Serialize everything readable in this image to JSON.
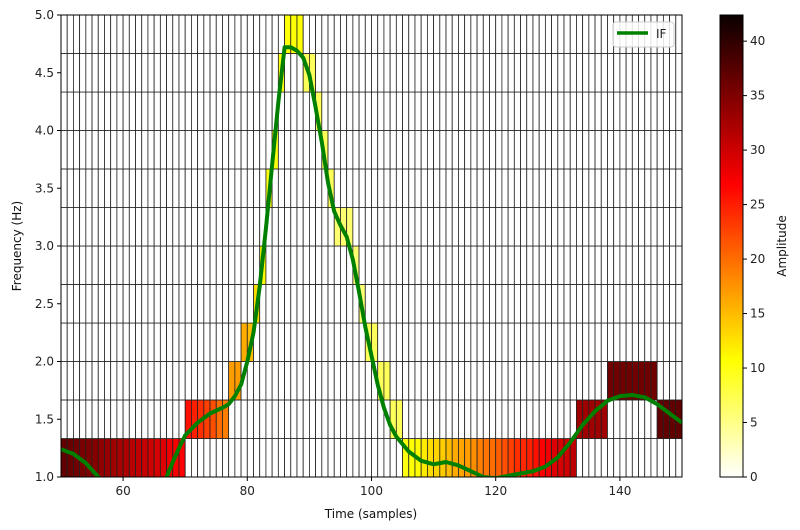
{
  "chart_data": {
    "type": "heatmap",
    "title": "",
    "xlabel": "Time (samples)",
    "ylabel": "Frequency (Hz)",
    "colorbar_label": "Amplitude",
    "colormap": "hot_r",
    "xlim": [
      50,
      150
    ],
    "ylim": [
      1.0,
      5.0
    ],
    "clim": [
      0,
      42.4
    ],
    "x_ticks": [
      "60",
      "80",
      "100",
      "120",
      "140"
    ],
    "y_ticks": [
      "1.0",
      "1.5",
      "2.0",
      "2.5",
      "3.0",
      "3.5",
      "4.0",
      "4.5",
      "5.0"
    ],
    "colorbar_ticks": [
      "0",
      "5",
      "10",
      "15",
      "20",
      "25",
      "30",
      "35",
      "40"
    ],
    "time_start": 50,
    "freq_bin_edges": [
      1.0,
      1.333,
      1.667,
      2.0,
      2.333,
      2.667,
      3.0,
      3.333,
      3.667,
      4.0,
      4.333,
      4.667,
      5.0
    ],
    "column_freq_bin": [
      0,
      0,
      0,
      0,
      0,
      0,
      0,
      0,
      0,
      0,
      0,
      0,
      0,
      0,
      0,
      0,
      0,
      0,
      0,
      0,
      1,
      1,
      1,
      1,
      1,
      1,
      1,
      2,
      2,
      3,
      3,
      4,
      5,
      7,
      8,
      10,
      11,
      11,
      11,
      10,
      10,
      9,
      8,
      7,
      6,
      6,
      6,
      5,
      4,
      3,
      3,
      2,
      2,
      1,
      1,
      0,
      0,
      0,
      0,
      0,
      0,
      0,
      0,
      0,
      0,
      0,
      0,
      0,
      0,
      0,
      0,
      0,
      0,
      0,
      0,
      0,
      0,
      0,
      0,
      0,
      0,
      0,
      0,
      1,
      1,
      1,
      1,
      1,
      2,
      2,
      2,
      2,
      2,
      2,
      2,
      2,
      1,
      1,
      1,
      1
    ],
    "column_amplitude": [
      37,
      36.5,
      36,
      35.5,
      35,
      34.5,
      34,
      33.5,
      33,
      32.5,
      32,
      31.5,
      31,
      30.5,
      30,
      29.5,
      29,
      28,
      27.5,
      27,
      26,
      25,
      24,
      23,
      22,
      20,
      19,
      17,
      17,
      16,
      15,
      13,
      11,
      10,
      10,
      10,
      10.5,
      10.5,
      10.5,
      7,
      7,
      7,
      7,
      7,
      6,
      6,
      6,
      6,
      6,
      7,
      7,
      7,
      7,
      7,
      7,
      10,
      10.5,
      11,
      12,
      13,
      13.5,
      14,
      15,
      16,
      16.5,
      17,
      18,
      19,
      19.5,
      20,
      21,
      22,
      23,
      24,
      24.5,
      25,
      26,
      27,
      28,
      29,
      29.5,
      30,
      31,
      33,
      33,
      33,
      33,
      33,
      36,
      36,
      36,
      36,
      36,
      36,
      36,
      36,
      37,
      37,
      37,
      37
    ],
    "line_series": {
      "name": "IF",
      "color": "#008000",
      "points": [
        [
          50,
          1.24
        ],
        [
          52,
          1.2
        ],
        [
          54,
          1.12
        ],
        [
          56,
          1.0
        ],
        [
          58,
          0.92
        ],
        [
          62,
          0.85
        ],
        [
          65,
          0.9
        ],
        [
          67,
          1.0
        ],
        [
          68,
          1.13
        ],
        [
          69,
          1.25
        ],
        [
          70,
          1.36
        ],
        [
          72,
          1.47
        ],
        [
          74,
          1.55
        ],
        [
          76,
          1.6
        ],
        [
          77,
          1.63
        ],
        [
          78,
          1.7
        ],
        [
          79,
          1.8
        ],
        [
          80,
          2.0
        ],
        [
          81,
          2.25
        ],
        [
          82,
          2.65
        ],
        [
          83,
          3.15
        ],
        [
          84,
          3.7
        ],
        [
          85,
          4.25
        ],
        [
          86,
          4.72
        ],
        [
          87,
          4.72
        ],
        [
          88,
          4.69
        ],
        [
          89,
          4.63
        ],
        [
          90,
          4.48
        ],
        [
          91,
          4.2
        ],
        [
          92,
          3.9
        ],
        [
          93,
          3.55
        ],
        [
          94,
          3.3
        ],
        [
          95,
          3.18
        ],
        [
          96,
          3.08
        ],
        [
          97,
          2.88
        ],
        [
          98,
          2.6
        ],
        [
          99,
          2.3
        ],
        [
          100,
          2.05
        ],
        [
          101,
          1.8
        ],
        [
          102,
          1.6
        ],
        [
          103,
          1.45
        ],
        [
          104,
          1.35
        ],
        [
          106,
          1.22
        ],
        [
          108,
          1.14
        ],
        [
          110,
          1.11
        ],
        [
          112,
          1.13
        ],
        [
          114,
          1.1
        ],
        [
          116,
          1.05
        ],
        [
          118,
          1.0
        ],
        [
          120,
          0.99
        ],
        [
          122,
          1.01
        ],
        [
          124,
          1.03
        ],
        [
          126,
          1.05
        ],
        [
          128,
          1.09
        ],
        [
          130,
          1.17
        ],
        [
          132,
          1.3
        ],
        [
          134,
          1.45
        ],
        [
          136,
          1.57
        ],
        [
          138,
          1.66
        ],
        [
          140,
          1.7
        ],
        [
          142,
          1.71
        ],
        [
          144,
          1.69
        ],
        [
          146,
          1.63
        ],
        [
          148,
          1.55
        ],
        [
          150,
          1.47
        ]
      ]
    },
    "legend": {
      "entries": [
        "IF"
      ],
      "placement": "upper-right"
    },
    "grid": false
  }
}
